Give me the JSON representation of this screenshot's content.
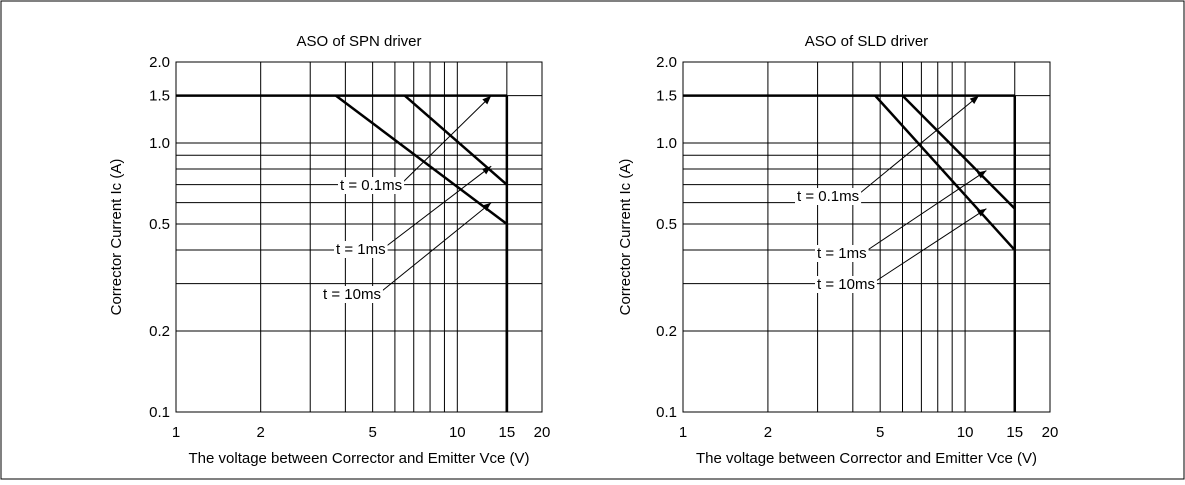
{
  "chart_data": [
    {
      "type": "line",
      "title": "ASO of SPN driver",
      "xlabel": "The voltage between Corrector and Emitter  Vce  (V)",
      "ylabel": "Corrector Current  Ic  (A)",
      "x_scale": "log",
      "y_scale": "log",
      "xlim": [
        1,
        20
      ],
      "ylim": [
        0.1,
        2.0
      ],
      "x_ticks": [
        1,
        2,
        5,
        10,
        15,
        20
      ],
      "x_tick_labels": [
        "1",
        "2",
        "5",
        "10",
        "15",
        "20"
      ],
      "y_ticks": [
        0.1,
        0.2,
        0.5,
        1.0,
        1.5,
        2.0
      ],
      "y_tick_labels": [
        "0.1",
        "0.2",
        "0.5",
        "1.0",
        "1.5",
        "2.0"
      ],
      "grid": true,
      "limit_current": 1.5,
      "limit_voltage": 15,
      "series": [
        {
          "name": "t = 0.1ms",
          "x": [
            6.5,
            15
          ],
          "y": [
            1.5,
            0.7
          ]
        },
        {
          "name": "t = 1ms",
          "x": [
            3.7,
            15
          ],
          "y": [
            1.5,
            0.5
          ]
        },
        {
          "name": "t = 10ms",
          "x": [
            15,
            15
          ],
          "y": [
            0.5,
            0.1
          ]
        }
      ],
      "annotations": [
        {
          "text": "t = 0.1ms",
          "arrow_to": [
            13.2,
            1.5
          ]
        },
        {
          "text": "t = 1ms",
          "arrow_to": [
            13.2,
            0.82
          ]
        },
        {
          "text": "t = 10ms",
          "arrow_to": [
            13.2,
            0.6
          ]
        }
      ]
    },
    {
      "type": "line",
      "title": "ASO of SLD driver",
      "xlabel": "The voltage between Corrector and Emitter  Vce  (V)",
      "ylabel": "Corrector Current  Ic  (A)",
      "x_scale": "log",
      "y_scale": "log",
      "xlim": [
        1,
        20
      ],
      "ylim": [
        0.1,
        2.0
      ],
      "x_ticks": [
        1,
        2,
        5,
        10,
        15,
        20
      ],
      "x_tick_labels": [
        "1",
        "2",
        "5",
        "10",
        "15",
        "20"
      ],
      "y_ticks": [
        0.1,
        0.2,
        0.5,
        1.0,
        1.5,
        2.0
      ],
      "y_tick_labels": [
        "0.1",
        "0.2",
        "0.5",
        "1.0",
        "1.5",
        "2.0"
      ],
      "grid": true,
      "limit_current": 1.5,
      "limit_voltage": 15,
      "series": [
        {
          "name": "t = 0.1ms",
          "x": [
            6.0,
            15
          ],
          "y": [
            1.5,
            0.57
          ]
        },
        {
          "name": "t = 1ms",
          "x": [
            4.8,
            15
          ],
          "y": [
            1.5,
            0.4
          ]
        },
        {
          "name": "t = 10ms",
          "x": [
            15,
            15
          ],
          "y": [
            0.4,
            0.1
          ]
        }
      ],
      "annotations": [
        {
          "text": "t = 0.1ms",
          "arrow_to": [
            11.2,
            1.5
          ]
        },
        {
          "text": "t = 1ms",
          "arrow_to": [
            11.9,
            0.79
          ]
        },
        {
          "text": "t = 10ms",
          "arrow_to": [
            11.9,
            0.57
          ]
        }
      ]
    }
  ]
}
